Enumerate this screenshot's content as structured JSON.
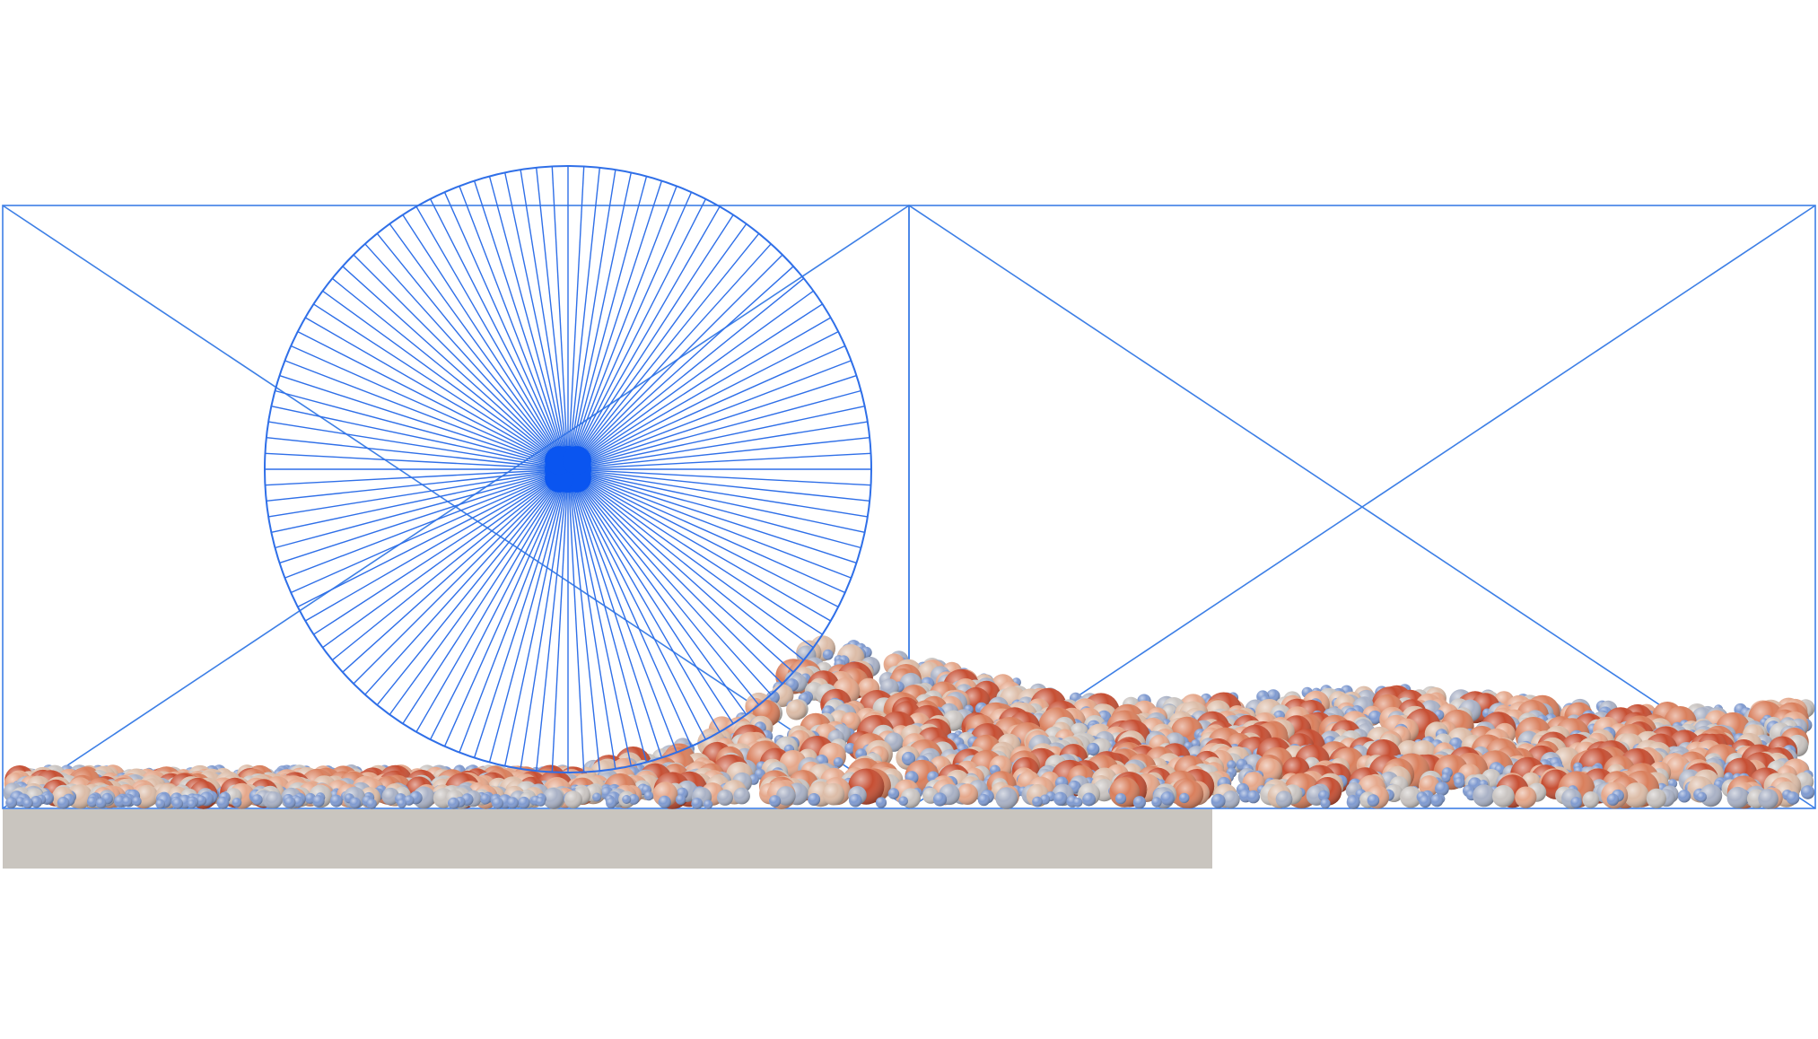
{
  "scene": {
    "colors": {
      "background": "#ffffff",
      "wireframe": "#3d7fe6",
      "wheel": "#2f6fe8",
      "hub": "#0a55f0",
      "ground": "#c9c5bf"
    },
    "wheel": {
      "spoke_count": 120
    },
    "particles": {
      "palette": [
        "#7f9ad0",
        "#a9b1c5",
        "#c9c4c1",
        "#dcbca7",
        "#e5a78a",
        "#d97f5c",
        "#c64e32"
      ]
    }
  }
}
